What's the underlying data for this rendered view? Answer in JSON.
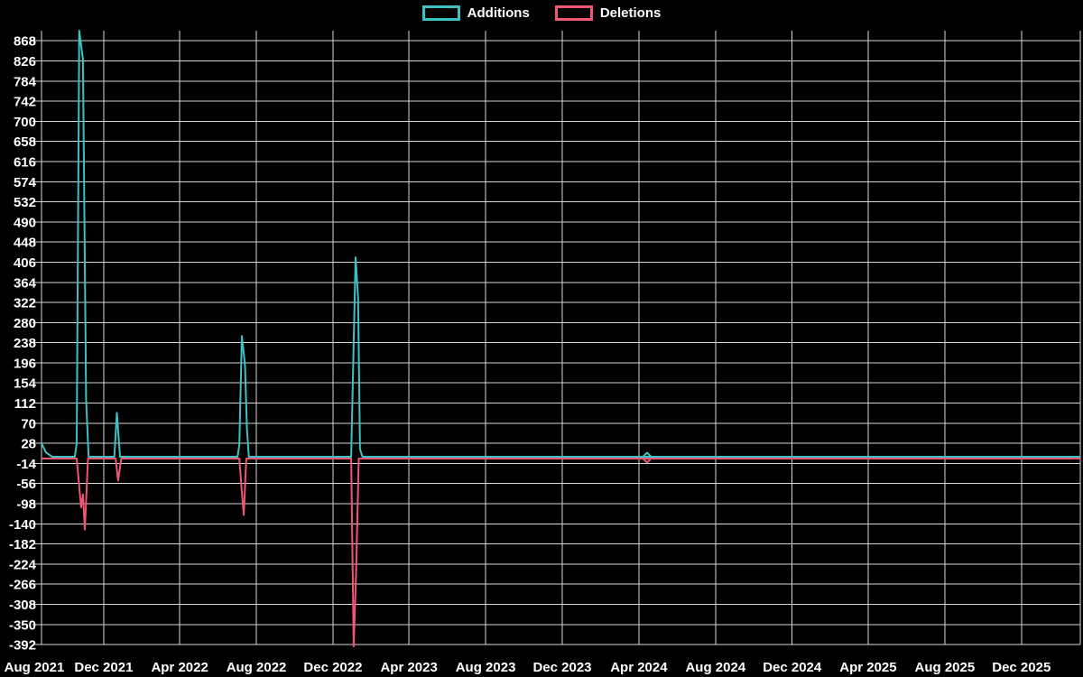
{
  "chart_data": {
    "type": "line",
    "title": "",
    "background_color": "#000000",
    "grid_color": "#d6d6d6",
    "text_color": "#ffffff",
    "legend_position": "top-center",
    "x_axis": {
      "start_date": "2021-08-24",
      "end_date": "2026-03-05",
      "ticks": [
        {
          "label": "Aug 2021",
          "date": "2021-08-01"
        },
        {
          "label": "Dec 2021",
          "date": "2021-12-01"
        },
        {
          "label": "Apr 2022",
          "date": "2022-04-01"
        },
        {
          "label": "Aug 2022",
          "date": "2022-08-01"
        },
        {
          "label": "Dec 2022",
          "date": "2022-12-01"
        },
        {
          "label": "Apr 2023",
          "date": "2023-04-01"
        },
        {
          "label": "Aug 2023",
          "date": "2023-08-01"
        },
        {
          "label": "Dec 2023",
          "date": "2023-12-01"
        },
        {
          "label": "Apr 2024",
          "date": "2024-04-01"
        },
        {
          "label": "Aug 2024",
          "date": "2024-08-01"
        },
        {
          "label": "Dec 2024",
          "date": "2024-12-01"
        },
        {
          "label": "Apr 2025",
          "date": "2025-04-01"
        },
        {
          "label": "Aug 2025",
          "date": "2025-08-01"
        },
        {
          "label": "Dec 2025",
          "date": "2025-12-01"
        }
      ]
    },
    "y_axis": {
      "min": -392,
      "max": 889,
      "tick_step": 42,
      "ticks": [
        868,
        826,
        784,
        742,
        700,
        658,
        616,
        574,
        532,
        490,
        448,
        406,
        364,
        322,
        280,
        238,
        196,
        154,
        112,
        70,
        28,
        -14,
        -56,
        -98,
        -140,
        -182,
        -224,
        -266,
        -308,
        -350,
        -392
      ]
    },
    "series": [
      {
        "name": "Additions",
        "color": "#3ec1c5",
        "points": [
          [
            "2021-08-24",
            28
          ],
          [
            "2021-08-31",
            9
          ],
          [
            "2021-09-10",
            0
          ],
          [
            "2021-10-16",
            0
          ],
          [
            "2021-10-19",
            28
          ],
          [
            "2021-10-23",
            889
          ],
          [
            "2021-10-29",
            830
          ],
          [
            "2021-11-03",
            120
          ],
          [
            "2021-11-07",
            0
          ],
          [
            "2021-12-18",
            0
          ],
          [
            "2021-12-22",
            92
          ],
          [
            "2021-12-27",
            0
          ],
          [
            "2022-07-02",
            0
          ],
          [
            "2022-07-05",
            25
          ],
          [
            "2022-07-09",
            252
          ],
          [
            "2022-07-14",
            190
          ],
          [
            "2022-07-17",
            60
          ],
          [
            "2022-07-20",
            0
          ],
          [
            "2022-12-30",
            0
          ],
          [
            "2023-01-06",
            416
          ],
          [
            "2023-01-10",
            330
          ],
          [
            "2023-01-13",
            15
          ],
          [
            "2023-01-17",
            0
          ],
          [
            "2026-03-05",
            0
          ]
        ]
      },
      {
        "name": "Deletions",
        "color": "#f05671",
        "points": [
          [
            "2021-08-24",
            0
          ],
          [
            "2021-10-19",
            0
          ],
          [
            "2021-10-26",
            -102
          ],
          [
            "2021-10-29",
            -75
          ],
          [
            "2021-11-01",
            -148
          ],
          [
            "2021-11-06",
            0
          ],
          [
            "2021-12-20",
            0
          ],
          [
            "2021-12-24",
            -46
          ],
          [
            "2021-12-29",
            0
          ],
          [
            "2022-07-05",
            0
          ],
          [
            "2022-07-09",
            -70
          ],
          [
            "2022-07-12",
            -118
          ],
          [
            "2022-07-16",
            0
          ],
          [
            "2022-12-30",
            0
          ],
          [
            "2023-01-03",
            -392
          ],
          [
            "2023-01-07",
            -230
          ],
          [
            "2023-01-11",
            0
          ],
          [
            "2026-03-05",
            0
          ]
        ]
      }
    ],
    "isolated_point": {
      "date": "2024-04-14",
      "additions": 0,
      "deletions": 0,
      "marker": "diamond"
    }
  }
}
